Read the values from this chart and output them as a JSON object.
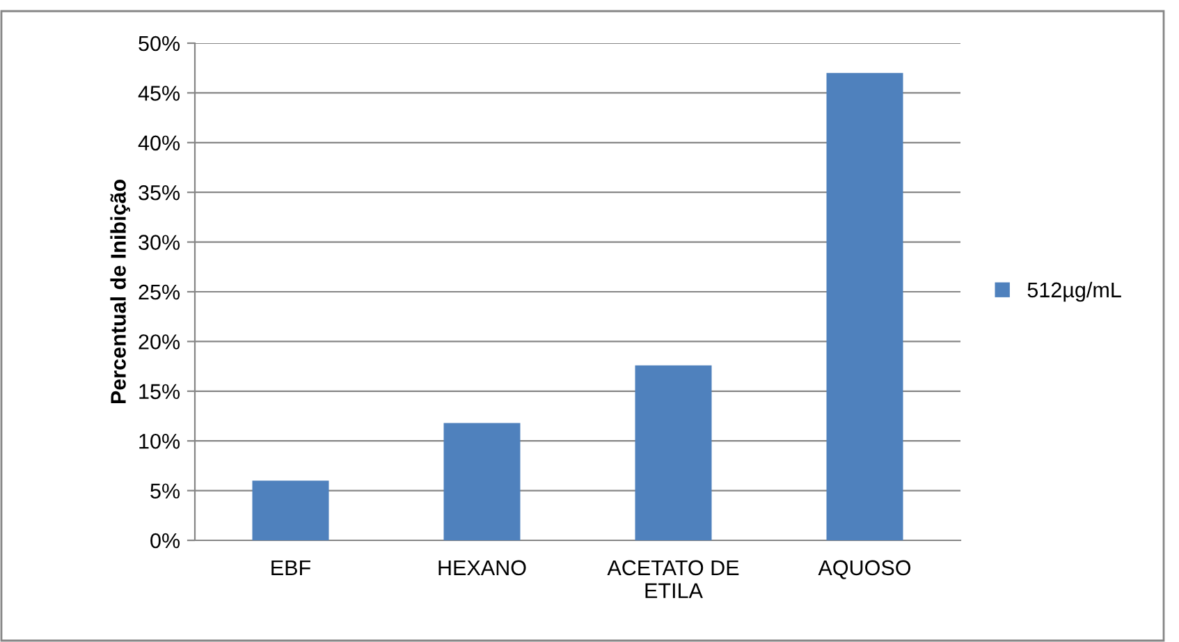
{
  "chart_data": {
    "type": "bar",
    "ylabel": "Percentual de Inibição",
    "categories": [
      "EBF",
      "HEXANO",
      "ACETATO DE\nETILA",
      "AQUOSO"
    ],
    "series": [
      {
        "name": "512µg/mL",
        "color": "#4f81bd",
        "values": [
          6,
          11.8,
          17.6,
          47
        ]
      }
    ],
    "ylim": [
      0,
      50
    ],
    "yticks": [
      {
        "value": 0,
        "label": "0%"
      },
      {
        "value": 5,
        "label": "5%"
      },
      {
        "value": 10,
        "label": "10%"
      },
      {
        "value": 15,
        "label": "15%"
      },
      {
        "value": 20,
        "label": "20%"
      },
      {
        "value": 25,
        "label": "25%"
      },
      {
        "value": 30,
        "label": "30%"
      },
      {
        "value": 35,
        "label": "35%"
      },
      {
        "value": 40,
        "label": "40%"
      },
      {
        "value": 45,
        "label": "45%"
      },
      {
        "value": 50,
        "label": "50%"
      }
    ],
    "grid": "y",
    "legend": "right"
  }
}
